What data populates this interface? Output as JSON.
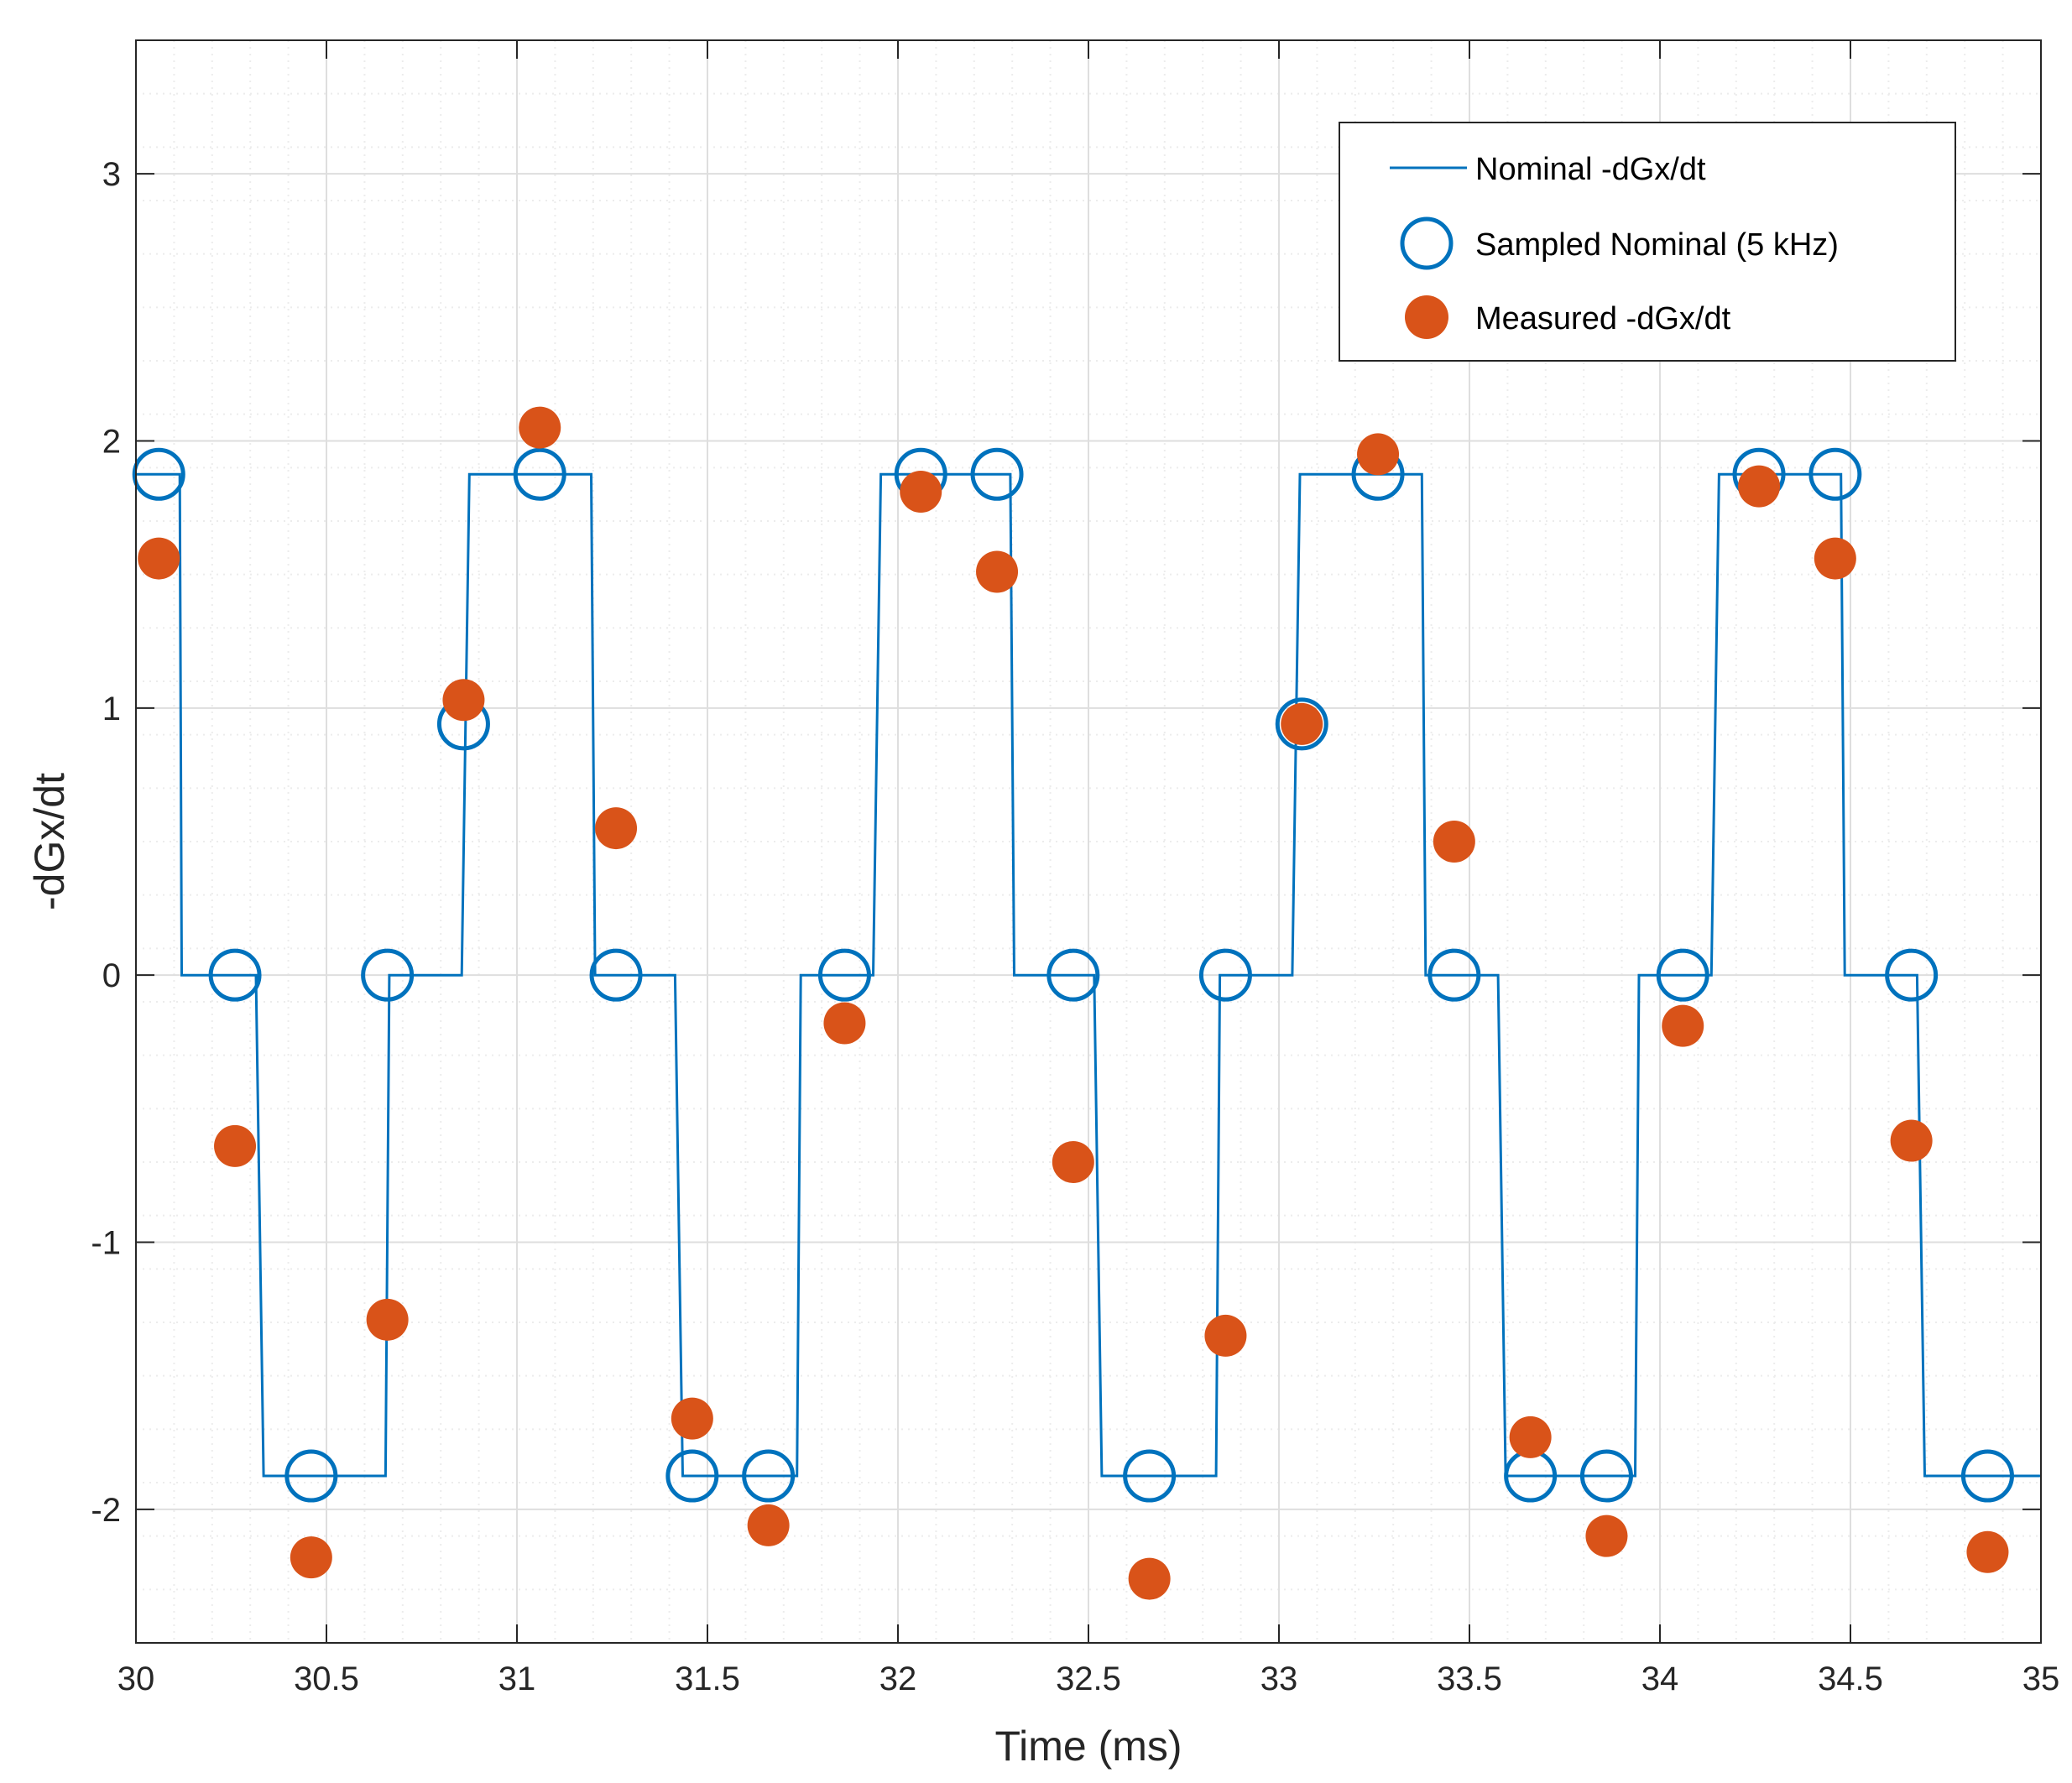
{
  "colors": {
    "nominal": "#0072BD",
    "measured": "#D95319",
    "axis": "#262626",
    "grid_major": "#dedede",
    "grid_minor": "#ececec",
    "background": "#ffffff"
  },
  "chart_data": {
    "type": "line",
    "title": "",
    "xlabel": "Time (ms)",
    "ylabel": "-dGx/dt",
    "xlim": [
      30,
      35
    ],
    "ylim": [
      -2.5,
      3.5
    ],
    "grid": true,
    "minor_grid": true,
    "xticks": [
      30,
      30.5,
      31,
      31.5,
      32,
      32.5,
      33,
      33.5,
      34,
      34.5,
      35
    ],
    "xtick_labels": [
      "30",
      "30.5",
      "31",
      "31.5",
      "32",
      "32.5",
      "33",
      "33.5",
      "34",
      "34.5",
      "35"
    ],
    "yticks": [
      -2,
      -1,
      0,
      1,
      2,
      3
    ],
    "ytick_labels": [
      "-2",
      "-1",
      "0",
      "1",
      "2",
      "3"
    ],
    "legend_position": "top-right",
    "legend": [
      {
        "label": "Nominal -dGx/dt",
        "kind": "line"
      },
      {
        "label": "Sampled Nominal (5 kHz)",
        "kind": "open-circle"
      },
      {
        "label": "Measured -dGx/dt",
        "kind": "filled-circle"
      }
    ],
    "series": [
      {
        "name": "Nominal -dGx/dt",
        "style": "step-line",
        "x": [
          30,
          30.115,
          30.12,
          30.315,
          30.335,
          30.655,
          30.665,
          30.855,
          30.875,
          31.195,
          31.205,
          31.415,
          31.435,
          31.735,
          31.745,
          31.935,
          31.955,
          32.295,
          32.305,
          32.515,
          32.535,
          32.835,
          32.845,
          33.035,
          33.055,
          33.375,
          33.385,
          33.575,
          33.595,
          33.935,
          33.945,
          34.135,
          34.155,
          34.475,
          34.485,
          34.675,
          34.695,
          35
        ],
        "y": [
          1.875,
          1.875,
          0,
          0,
          -1.875,
          -1.875,
          0,
          0,
          1.875,
          1.875,
          0,
          0,
          -1.875,
          -1.875,
          0,
          0,
          1.875,
          1.875,
          0,
          0,
          -1.875,
          -1.875,
          0,
          0,
          1.875,
          1.875,
          0,
          0,
          -1.875,
          -1.875,
          0,
          0,
          1.875,
          1.875,
          0,
          0,
          -1.875,
          -1.875
        ]
      },
      {
        "name": "Sampled Nominal (5 kHz)",
        "style": "open-circle",
        "x": [
          30.06,
          30.26,
          30.46,
          30.66,
          30.86,
          31.06,
          31.26,
          31.46,
          31.66,
          31.86,
          32.06,
          32.26,
          32.46,
          32.66,
          32.86,
          33.06,
          33.26,
          33.46,
          33.66,
          33.86,
          34.06,
          34.26,
          34.46,
          34.66,
          34.86
        ],
        "y": [
          1.875,
          0,
          -1.875,
          0,
          0.94,
          1.875,
          0,
          -1.875,
          -1.875,
          0,
          1.875,
          1.875,
          0,
          -1.875,
          0,
          0.94,
          1.875,
          0,
          -1.875,
          -1.875,
          0,
          1.875,
          1.875,
          0,
          -1.875
        ]
      },
      {
        "name": "Measured -dGx/dt",
        "style": "filled-circle",
        "x": [
          30.06,
          30.26,
          30.46,
          30.66,
          30.86,
          31.06,
          31.26,
          31.46,
          31.66,
          31.86,
          32.06,
          32.26,
          32.46,
          32.66,
          32.86,
          33.06,
          33.26,
          33.46,
          33.66,
          33.86,
          34.06,
          34.26,
          34.46,
          34.66,
          34.86
        ],
        "y": [
          1.56,
          -0.64,
          -2.18,
          -1.29,
          1.03,
          2.05,
          0.55,
          -1.66,
          -2.06,
          -0.18,
          1.81,
          1.51,
          -0.7,
          -2.26,
          -1.35,
          0.94,
          1.95,
          0.5,
          -1.73,
          -2.1,
          -0.19,
          1.83,
          1.56,
          -0.62,
          -2.16
        ]
      }
    ]
  }
}
